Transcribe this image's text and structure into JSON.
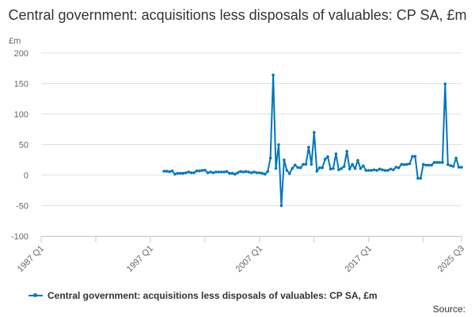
{
  "chart_data": {
    "type": "line",
    "title": "Central government: acquisitions less disposals of valuables: CP SA, £m",
    "ylabel": "£m",
    "ylim": [
      -100,
      200
    ],
    "yticks": [
      "200",
      "150",
      "100",
      "50",
      "0",
      "-50",
      "-100"
    ],
    "xlim": [
      "1987 Q1",
      "2025 Q3"
    ],
    "xticks": [
      "1987 Q1",
      "1997 Q1",
      "2007 Q1",
      "2017 Q1",
      "2025 Q3"
    ],
    "grid": true,
    "legend_position": "bottom",
    "series_color": "#0077bb",
    "series": [
      {
        "name": "Central government: acquisitions less disposals of valuables: CP SA, £m",
        "x": [
          "1998 Q2",
          "1998 Q3",
          "1998 Q4",
          "1999 Q1",
          "1999 Q2",
          "1999 Q3",
          "1999 Q4",
          "2000 Q1",
          "2000 Q2",
          "2000 Q3",
          "2000 Q4",
          "2001 Q1",
          "2001 Q2",
          "2001 Q3",
          "2001 Q4",
          "2002 Q1",
          "2002 Q2",
          "2002 Q3",
          "2002 Q4",
          "2003 Q1",
          "2003 Q2",
          "2003 Q3",
          "2003 Q4",
          "2004 Q1",
          "2004 Q2",
          "2004 Q3",
          "2004 Q4",
          "2005 Q1",
          "2005 Q2",
          "2005 Q3",
          "2005 Q4",
          "2006 Q1",
          "2006 Q2",
          "2006 Q3",
          "2006 Q4",
          "2007 Q1",
          "2007 Q2",
          "2007 Q3",
          "2007 Q4",
          "2008 Q1",
          "2008 Q2",
          "2008 Q3",
          "2008 Q4",
          "2009 Q1",
          "2009 Q2",
          "2009 Q3",
          "2009 Q4",
          "2010 Q1",
          "2010 Q2",
          "2010 Q3",
          "2010 Q4",
          "2011 Q1",
          "2011 Q2",
          "2011 Q3",
          "2011 Q4",
          "2012 Q1",
          "2012 Q2",
          "2012 Q3",
          "2012 Q4",
          "2013 Q1",
          "2013 Q2",
          "2013 Q3",
          "2013 Q4",
          "2014 Q1",
          "2014 Q2",
          "2014 Q3",
          "2014 Q4",
          "2015 Q1",
          "2015 Q2",
          "2015 Q3",
          "2015 Q4",
          "2016 Q1",
          "2016 Q2",
          "2016 Q3",
          "2016 Q4",
          "2017 Q1",
          "2017 Q2",
          "2017 Q3",
          "2017 Q4",
          "2018 Q1",
          "2018 Q2",
          "2018 Q3",
          "2018 Q4",
          "2019 Q1",
          "2019 Q2",
          "2019 Q3",
          "2019 Q4",
          "2020 Q1",
          "2020 Q2",
          "2020 Q3",
          "2020 Q4",
          "2021 Q1",
          "2021 Q2",
          "2021 Q3",
          "2021 Q4",
          "2022 Q1",
          "2022 Q2",
          "2022 Q3",
          "2022 Q4",
          "2023 Q1",
          "2023 Q2",
          "2023 Q3",
          "2023 Q4",
          "2024 Q1",
          "2024 Q2",
          "2024 Q3",
          "2024 Q4",
          "2025 Q1",
          "2025 Q2",
          "2025 Q3"
        ],
        "values": [
          6.5,
          6.5,
          5.6,
          6.9,
          1.7,
          3,
          3,
          3,
          3.9,
          5.2,
          3.9,
          3.9,
          6.9,
          6.9,
          7.8,
          8.2,
          3.9,
          5.2,
          3.9,
          5.2,
          5.2,
          5.2,
          5.2,
          6,
          3,
          3,
          1.7,
          3.9,
          6,
          5.2,
          6,
          5.2,
          3.9,
          5.2,
          3.9,
          3.9,
          3,
          1.7,
          6,
          28,
          164,
          11,
          50,
          -50,
          25,
          7.8,
          2.6,
          11,
          16.5,
          12.6,
          12,
          17.7,
          17.9,
          45.9,
          17.7,
          70,
          6.5,
          12.1,
          12.1,
          26,
          30.3,
          10,
          10.8,
          35,
          8.7,
          10.8,
          14.3,
          39,
          10,
          17.7,
          10.8,
          24.2,
          10.8,
          15.2,
          7.8,
          7.8,
          7.8,
          8.7,
          7.8,
          10,
          8.7,
          7.8,
          7.8,
          10,
          8.7,
          13,
          12.1,
          17.7,
          17.3,
          17.7,
          18.6,
          30.7,
          30.7,
          -5.2,
          -5.2,
          17.7,
          16.4,
          16.4,
          16.4,
          20.8,
          20.8,
          20.8,
          20.8,
          149.4,
          17.3,
          15.6,
          14.3,
          28,
          13,
          13
        ]
      }
    ]
  },
  "source_label": "Source:"
}
